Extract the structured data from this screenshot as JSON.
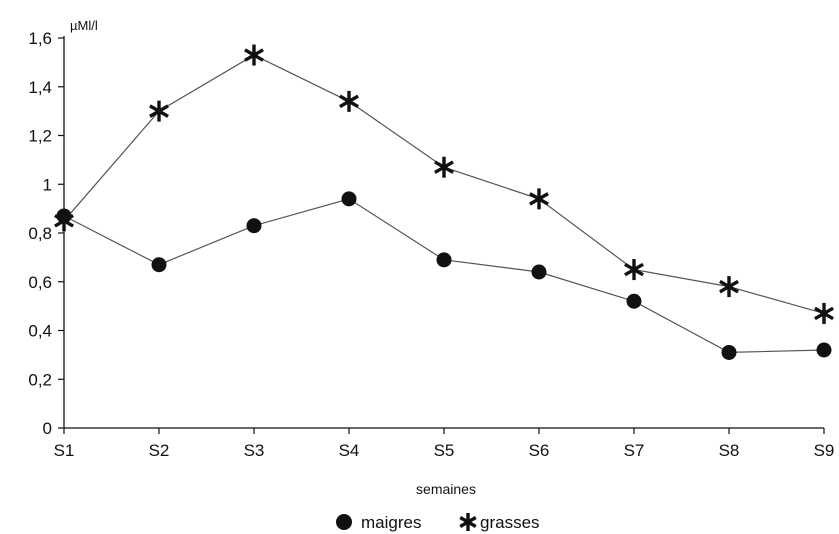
{
  "chart_data": {
    "type": "line",
    "categories": [
      "S1",
      "S2",
      "S3",
      "S4",
      "S5",
      "S6",
      "S7",
      "S8",
      "S9"
    ],
    "series": [
      {
        "name": "maigres",
        "marker": "circle",
        "values": [
          0.87,
          0.67,
          0.83,
          0.94,
          0.69,
          0.64,
          0.52,
          0.31,
          0.32
        ]
      },
      {
        "name": "grasses",
        "marker": "asterisk",
        "values": [
          0.85,
          1.3,
          1.53,
          1.34,
          1.07,
          0.94,
          0.65,
          0.58,
          0.47
        ]
      }
    ],
    "y_unit": "µMl/l",
    "xlabel": "semaines",
    "ylim": [
      0,
      1.6
    ],
    "yticks": [
      "0",
      "0,2",
      "0,4",
      "0,6",
      "0,8",
      "1",
      "1,2",
      "1,4",
      "1,6"
    ],
    "grid": false,
    "legend_position": "bottom-center",
    "colors": {
      "line": "#555555",
      "marker": "#111111",
      "axis": "#111111"
    }
  }
}
